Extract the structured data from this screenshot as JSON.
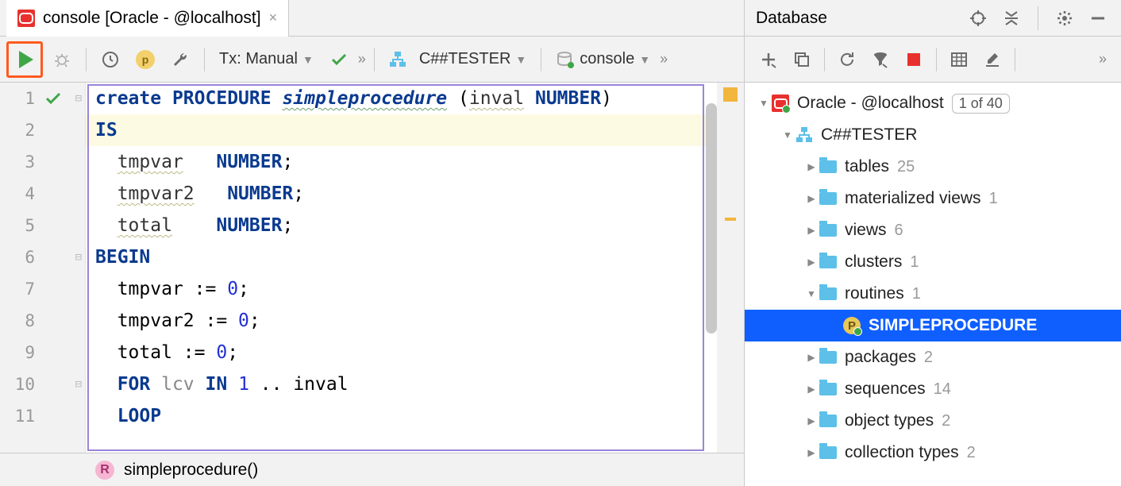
{
  "tab": {
    "title": "console [Oracle - @localhost]"
  },
  "toolbar": {
    "tx_label": "Tx: Manual",
    "schema_label": "C##TESTER",
    "console_label": "console"
  },
  "code": {
    "lines": [
      {
        "n": 1,
        "hl": false,
        "mark": "check",
        "fold": "col",
        "tokens": [
          [
            "kw",
            "create"
          ],
          [
            "sp",
            " "
          ],
          [
            "kw",
            "PROCEDURE"
          ],
          [
            "sp",
            " "
          ],
          [
            "fn",
            "simpleprocedure"
          ],
          [
            "sp",
            " "
          ],
          [
            "txt",
            "("
          ],
          [
            "id",
            "inval"
          ],
          [
            "sp",
            " "
          ],
          [
            "kw",
            "NUMBER"
          ],
          [
            "txt",
            ")"
          ]
        ]
      },
      {
        "n": 2,
        "hl": true,
        "tokens": [
          [
            "kw",
            "IS"
          ]
        ]
      },
      {
        "n": 3,
        "tokens": [
          [
            "sp",
            "  "
          ],
          [
            "id",
            "tmpvar"
          ],
          [
            "sp",
            "   "
          ],
          [
            "kw",
            "NUMBER"
          ],
          [
            "txt",
            ";"
          ]
        ]
      },
      {
        "n": 4,
        "tokens": [
          [
            "sp",
            "  "
          ],
          [
            "id",
            "tmpvar2"
          ],
          [
            "sp",
            "   "
          ],
          [
            "kw",
            "NUMBER"
          ],
          [
            "txt",
            ";"
          ]
        ]
      },
      {
        "n": 5,
        "tokens": [
          [
            "sp",
            "  "
          ],
          [
            "id",
            "total"
          ],
          [
            "sp",
            "    "
          ],
          [
            "kw",
            "NUMBER"
          ],
          [
            "txt",
            ";"
          ]
        ]
      },
      {
        "n": 6,
        "fold": "col",
        "tokens": [
          [
            "kw",
            "BEGIN"
          ]
        ]
      },
      {
        "n": 7,
        "tokens": [
          [
            "sp",
            "  "
          ],
          [
            "txt",
            "tmpvar := "
          ],
          [
            "num",
            "0"
          ],
          [
            "txt",
            ";"
          ]
        ]
      },
      {
        "n": 8,
        "tokens": [
          [
            "sp",
            "  "
          ],
          [
            "txt",
            "tmpvar2 := "
          ],
          [
            "num",
            "0"
          ],
          [
            "txt",
            ";"
          ]
        ]
      },
      {
        "n": 9,
        "tokens": [
          [
            "sp",
            "  "
          ],
          [
            "txt",
            "total := "
          ],
          [
            "num",
            "0"
          ],
          [
            "txt",
            ";"
          ]
        ]
      },
      {
        "n": 10,
        "fold": "col",
        "tokens": [
          [
            "sp",
            "  "
          ],
          [
            "kw",
            "FOR"
          ],
          [
            "sp",
            " "
          ],
          [
            "id2",
            "lcv"
          ],
          [
            "sp",
            " "
          ],
          [
            "kw",
            "IN"
          ],
          [
            "sp",
            " "
          ],
          [
            "num",
            "1"
          ],
          [
            "sp",
            " "
          ],
          [
            "txt",
            ".. inval"
          ]
        ]
      },
      {
        "n": 11,
        "tokens": [
          [
            "sp",
            "  "
          ],
          [
            "kw",
            "LOOP"
          ]
        ]
      }
    ]
  },
  "breadcrumb": {
    "name": "simpleprocedure()"
  },
  "database_panel": {
    "title": "Database",
    "datasource": "Oracle - @localhost",
    "datasource_count": "1 of 40",
    "schema": "C##TESTER",
    "folders": [
      {
        "name": "tables",
        "count": "25"
      },
      {
        "name": "materialized views",
        "count": "1"
      },
      {
        "name": "views",
        "count": "6"
      },
      {
        "name": "clusters",
        "count": "1"
      },
      {
        "name": "routines",
        "count": "1",
        "expanded": true,
        "children": [
          {
            "name": "SIMPLEPROCEDURE",
            "selected": true
          }
        ]
      },
      {
        "name": "packages",
        "count": "2"
      },
      {
        "name": "sequences",
        "count": "14"
      },
      {
        "name": "object types",
        "count": "2"
      },
      {
        "name": "collection types",
        "count": "2"
      }
    ]
  },
  "colors": {
    "keyword": "#0a3a8f",
    "selection": "#0f5fff",
    "run_border": "#ff5a1f",
    "folder": "#5cc0e8",
    "oracle_red": "#e8312f"
  }
}
